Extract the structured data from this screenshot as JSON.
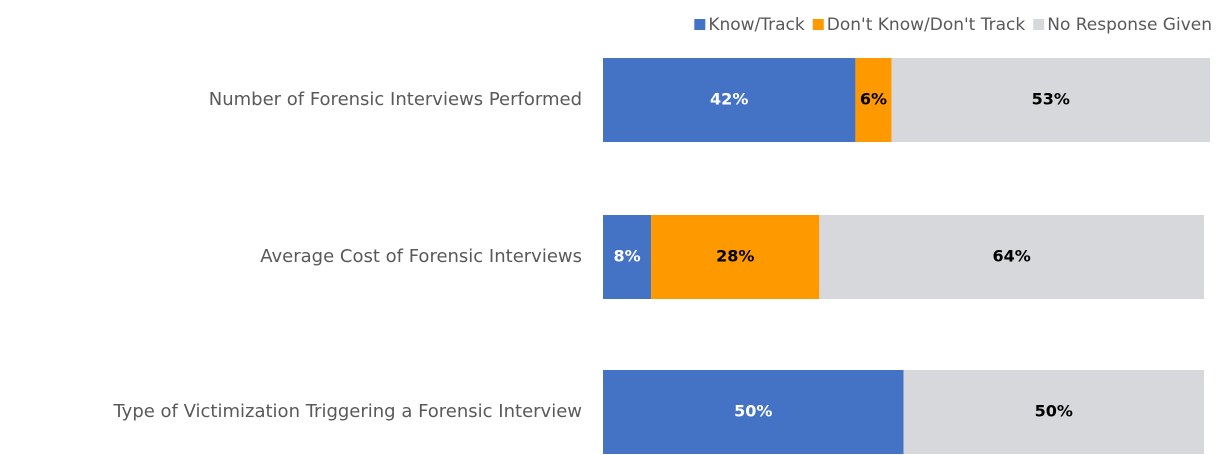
{
  "chart_data": {
    "type": "stacked-bar-horizontal",
    "categories": [
      "Number of Forensic Interviews Performed",
      "Average Cost of Forensic Interviews",
      "Type of Victimization Triggering a Forensic Interview"
    ],
    "series": [
      {
        "name": "Know/Track",
        "color": "#4472c4",
        "label_color": "#ffffff",
        "values": [
          42,
          8,
          50
        ],
        "value_labels": [
          "42%",
          "8%",
          "50%"
        ]
      },
      {
        "name": "Don't Know/Don't Track",
        "color": "#ff9900",
        "label_color": "#000000",
        "values": [
          6,
          28,
          0
        ],
        "value_labels": [
          "6%",
          "28%",
          null
        ]
      },
      {
        "name": "No Response Given",
        "color": "#d7d8db",
        "label_color": "#000000",
        "values": [
          53,
          64,
          50
        ],
        "value_labels": [
          "53%",
          "64%",
          "50%"
        ]
      }
    ],
    "legend": "top-right"
  }
}
